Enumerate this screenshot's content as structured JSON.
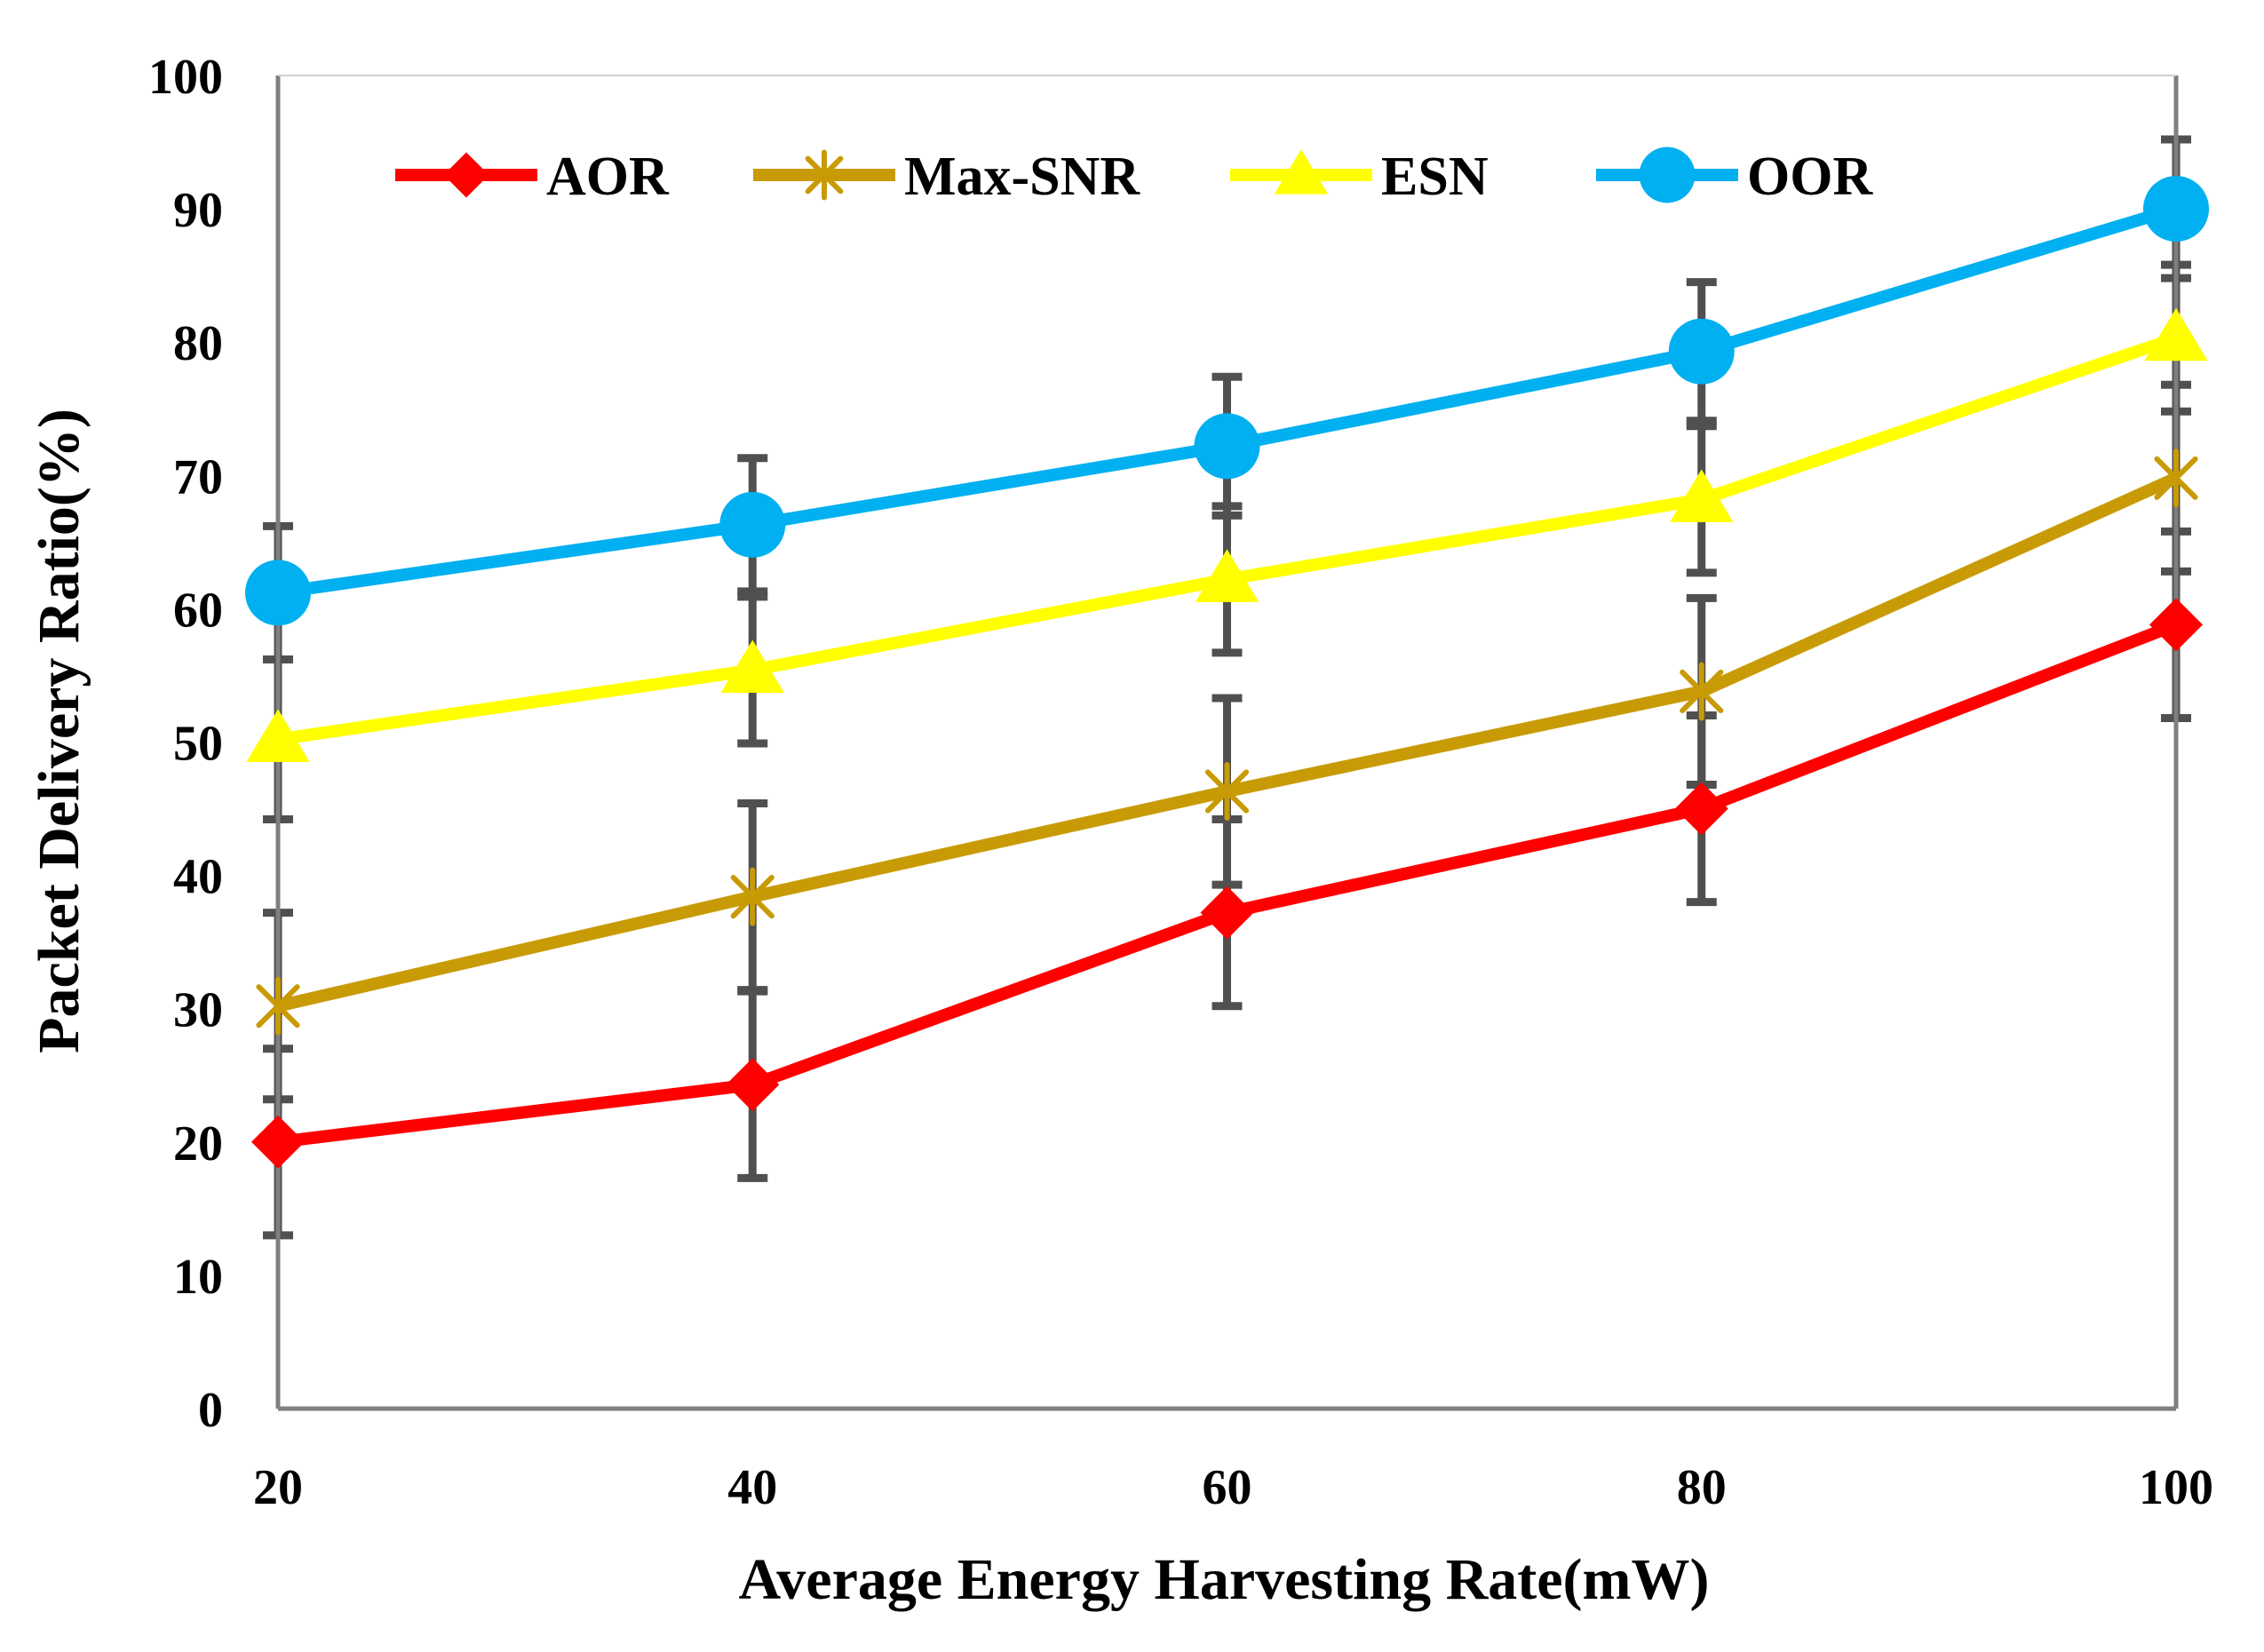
{
  "chart_data": {
    "type": "line",
    "title": "",
    "xlabel": "Average Energy Harvesting Rate(mW)",
    "ylabel": "Packet Delivery Ratio(%)",
    "x": [
      20,
      40,
      60,
      80,
      100
    ],
    "x_tick_labels": [
      "20",
      "40",
      "60",
      "80",
      "100"
    ],
    "ylim": [
      0,
      100
    ],
    "y_ticks": [
      0,
      10,
      20,
      30,
      40,
      50,
      60,
      70,
      80,
      90,
      100
    ],
    "y_tick_labels": [
      "0",
      "10",
      "20",
      "30",
      "40",
      "50",
      "60",
      "70",
      "80",
      "90",
      "100"
    ],
    "grid": false,
    "legend_position": "top",
    "series": [
      {
        "name": "AOR",
        "marker": "diamond",
        "color": "#FF0000",
        "values": [
          20,
          24.3,
          37.2,
          45,
          58.8
        ],
        "error": [
          7,
          7,
          7,
          7,
          7
        ]
      },
      {
        "name": "Max-SNR",
        "marker": "asterisk",
        "color": "#C89B06",
        "values": [
          30.2,
          38.4,
          46.3,
          53.8,
          69.8
        ],
        "error": [
          7,
          7,
          7,
          7,
          7
        ]
      },
      {
        "name": "ESN",
        "marker": "triangle",
        "color": "#FFFF00",
        "values": [
          50.2,
          55.4,
          62.2,
          68.2,
          80.3
        ],
        "error": [
          6,
          5.5,
          5.5,
          5.5,
          5.5
        ]
      },
      {
        "name": "OOR",
        "marker": "circle",
        "color": "#00B0F0",
        "values": [
          61.2,
          66.3,
          72.2,
          79.3,
          90
        ],
        "error": [
          5,
          5,
          5.2,
          5.2,
          5.2
        ]
      }
    ]
  }
}
